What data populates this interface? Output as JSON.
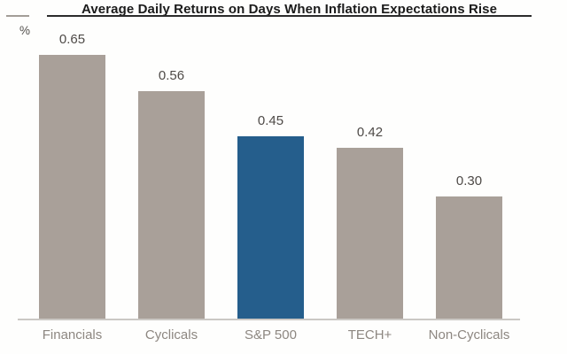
{
  "header": {
    "title": "Average Daily Returns on Days When Inflation Expectations Rise",
    "y_axis_unit": "%"
  },
  "colors": {
    "bar_default": "#a9a099",
    "bar_highlight": "#255e8c",
    "title_text": "#1b1b1b",
    "title_underline": "#2b2b2b",
    "left_rule": "#a39d97",
    "value_label": "#4e4a47",
    "category_label": "#8d8781",
    "axis_line": "#cbc8c4"
  },
  "chart_data": {
    "type": "bar",
    "title": "Average Daily Returns on Days When Inflation Expectations Rise",
    "categories": [
      "Financials",
      "Cyclicals",
      "S&P 500",
      "TECH+",
      "Non-Cyclicals"
    ],
    "values": [
      0.65,
      0.56,
      0.45,
      0.42,
      0.3
    ],
    "value_labels": [
      "0.65",
      "0.56",
      "0.45",
      "0.42",
      "0.30"
    ],
    "highlighted_category": "S&P 500",
    "highlight_index": 2,
    "xlabel": "",
    "ylabel": "%",
    "ylim": [
      0,
      0.78
    ],
    "grid": false,
    "legend": false,
    "value_labels_shown": true
  }
}
